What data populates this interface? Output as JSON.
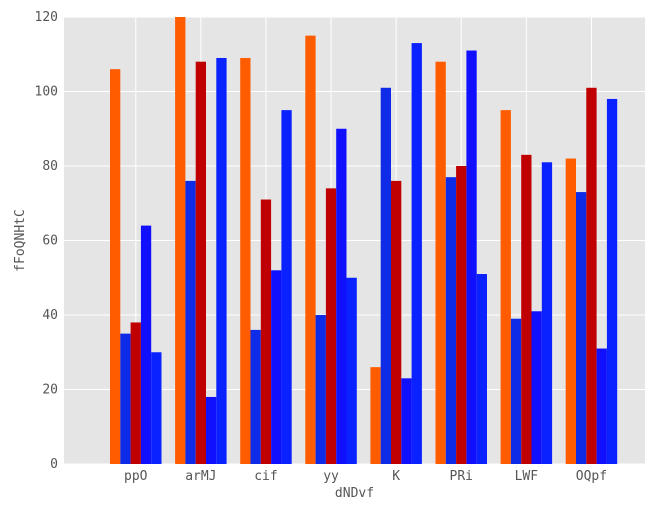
{
  "chart_data": {
    "type": "bar",
    "title": "",
    "xlabel": "dNDvf",
    "ylabel": "fFoQNHtC",
    "categories": [
      "ppO",
      "arMJ",
      "cif",
      "yy",
      "K",
      "PRi",
      "LWF",
      "OQpf"
    ],
    "series": [
      {
        "color": "#ff5c00",
        "values": [
          106,
          120,
          109,
          115,
          26,
          108,
          95,
          82
        ]
      },
      {
        "color": "#0e2be8",
        "values": [
          35,
          76,
          36,
          40,
          101,
          77,
          39,
          73
        ]
      },
      {
        "color": "#c00000",
        "values": [
          38,
          108,
          71,
          74,
          76,
          80,
          83,
          101
        ]
      },
      {
        "color": "#1010ff",
        "values": [
          64,
          18,
          52,
          90,
          23,
          111,
          41,
          31
        ]
      },
      {
        "color": "#0a22ff",
        "values": [
          30,
          109,
          95,
          50,
          113,
          51,
          81,
          98
        ]
      }
    ],
    "ylim": [
      0,
      120
    ],
    "yticks": [
      0,
      20,
      40,
      60,
      80,
      100,
      120
    ],
    "grid": true,
    "background": "#e5e5e5",
    "grid_color": "#ffffff"
  }
}
